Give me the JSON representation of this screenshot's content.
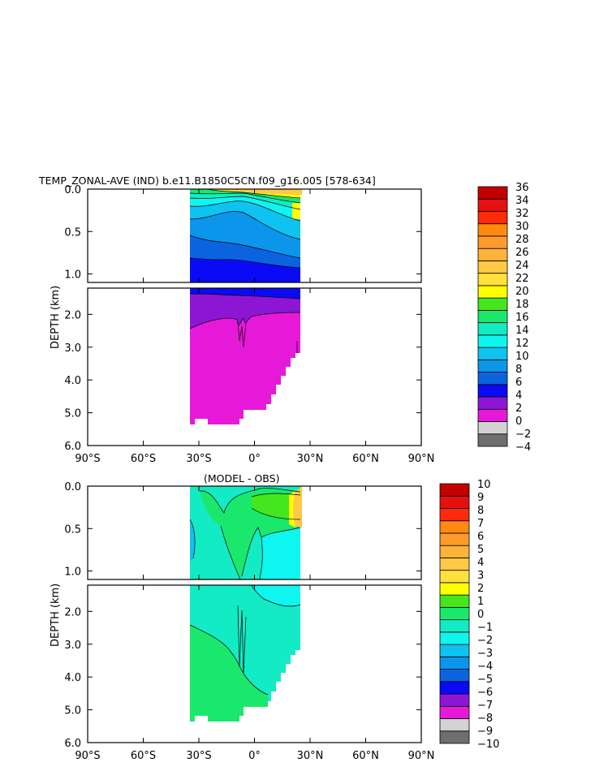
{
  "colors": {
    "temp": [
      "#6e6e6e",
      "#d2d2d2",
      "#e619d9",
      "#8d16d5",
      "#0a0af5",
      "#0b63e0",
      "#0b96eb",
      "#0ec3ef",
      "#0ff5f0",
      "#13ebc4",
      "#1ae86d",
      "#45e61e",
      "#ffff00",
      "#ffe03d",
      "#ffc845",
      "#ffb23b",
      "#ff9a2d",
      "#ff8a0f",
      "#ff2a0a",
      "#e61010",
      "#c20000"
    ],
    "diff": [
      "#6e6e6e",
      "#d2d2d2",
      "#e619d9",
      "#8d16d5",
      "#0a0af5",
      "#0b63e0",
      "#0b96eb",
      "#0ec3ef",
      "#0ff5f0",
      "#13ebc4",
      "#1ae86d",
      "#45e61e",
      "#ffff00",
      "#ffe03d",
      "#ffc845",
      "#ffb23b",
      "#ff9a2d",
      "#ff8a0f",
      "#ff2a0a",
      "#e61010",
      "#c20000"
    ]
  },
  "chart_data": [
    {
      "type": "heatmap",
      "title": "TEMP_ZONAL-AVE (IND) b.e11.B1850C5CN.f09_g16.005 [578-634]",
      "xlabel": "",
      "ylabel": "DEPTH (km)",
      "x_ticks": [
        "90°S",
        "60°S",
        "30°S",
        "0°",
        "30°N",
        "60°N",
        "90°N"
      ],
      "y_ticks_upper": [
        "0.0",
        "0.5",
        "1.0"
      ],
      "y_ticks_lower": [
        "2.0",
        "3.0",
        "4.0",
        "5.0",
        "6.0"
      ],
      "xlim": [
        -90,
        90
      ],
      "ylim_upper": [
        0,
        1.1
      ],
      "ylim_lower": [
        1.2,
        6.0
      ],
      "data_extent_lat": [
        -35,
        25
      ],
      "colorbar_labels": [
        "36",
        "34",
        "32",
        "30",
        "28",
        "26",
        "24",
        "22",
        "20",
        "18",
        "16",
        "14",
        "12",
        "10",
        "8",
        "6",
        "4",
        "2",
        "0",
        "−2",
        "−4"
      ],
      "colorbar_range": [
        -4,
        36
      ],
      "bands": [
        {
          "label": "24-28",
          "color": "#ffc845"
        },
        {
          "label": "20-24",
          "color": "#ffff00"
        },
        {
          "label": "16-20",
          "color": "#1ae86d"
        },
        {
          "label": "12-16",
          "color": "#0ff5f0"
        },
        {
          "label": "8-12",
          "color": "#0b96eb"
        },
        {
          "label": "4-8",
          "color": "#0a0af5"
        },
        {
          "label": "2-4",
          "color": "#8d16d5"
        },
        {
          "label": "0-2",
          "color": "#e619d9"
        }
      ]
    },
    {
      "type": "heatmap",
      "title": "(MODEL - OBS)",
      "xlabel": "",
      "ylabel": "DEPTH (km)",
      "x_ticks": [
        "90°S",
        "60°S",
        "30°S",
        "0°",
        "30°N",
        "60°N",
        "90°N"
      ],
      "y_ticks_upper": [
        "0.0",
        "0.5",
        "1.0"
      ],
      "y_ticks_lower": [
        "2.0",
        "3.0",
        "4.0",
        "5.0",
        "6.0"
      ],
      "xlim": [
        -90,
        90
      ],
      "ylim_upper": [
        0,
        1.1
      ],
      "ylim_lower": [
        1.2,
        6.0
      ],
      "data_extent_lat": [
        -35,
        25
      ],
      "colorbar_labels": [
        "10",
        "9",
        "8",
        "7",
        "6",
        "5",
        "4",
        "3",
        "2",
        "1",
        "0",
        "−1",
        "−2",
        "−3",
        "−4",
        "−5",
        "−6",
        "−7",
        "−8",
        "−9",
        "−10"
      ],
      "colorbar_range": [
        -10,
        10
      ],
      "bands": [
        {
          "label": "1-2",
          "color": "#45e61e"
        },
        {
          "label": "0-1",
          "color": "#1ae86d"
        },
        {
          "label": "-1-0",
          "color": "#13ebc4"
        },
        {
          "label": "-2--1",
          "color": "#0ff5f0"
        },
        {
          "label": "3-5",
          "color": "#ffc845"
        }
      ]
    }
  ]
}
